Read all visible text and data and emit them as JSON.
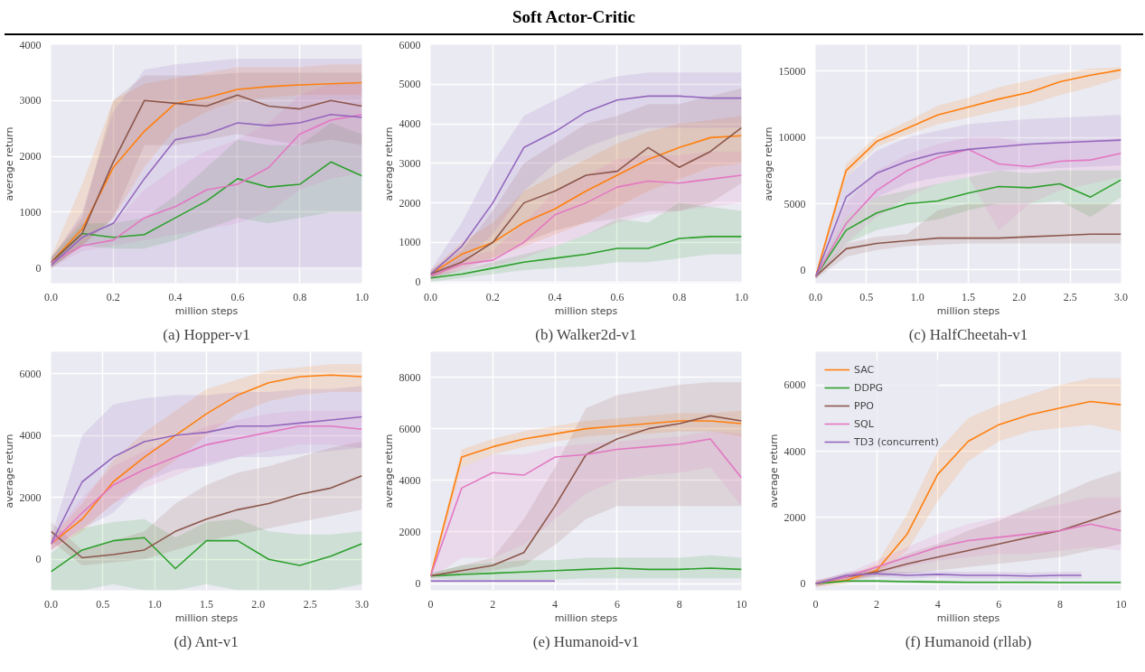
{
  "chart_data": [
    {
      "type": "line",
      "title": "(a) Hopper-v1",
      "annotations": [
        "Soft Actor-Critic"
      ],
      "xlabel": "million steps",
      "ylabel": "average return",
      "grid": true,
      "xlim": [
        0,
        1.0
      ],
      "ylim": [
        -270,
        4000
      ],
      "xticks": [
        {
          "value": 0,
          "label": "0.0"
        },
        {
          "value": 0.2,
          "label": "0.2"
        },
        {
          "value": 0.4,
          "label": "0.4"
        },
        {
          "value": 0.6,
          "label": "0.6"
        },
        {
          "value": 0.8,
          "label": "0.8"
        },
        {
          "value": 1.0,
          "label": "1.0"
        }
      ],
      "yticks": [
        0,
        1000,
        2000,
        3000,
        4000
      ],
      "x": [
        0,
        0.1,
        0.2,
        0.3,
        0.4,
        0.5,
        0.6,
        0.7,
        0.8,
        0.9,
        1.0
      ],
      "series": [
        {
          "color": "#ff7f0e",
          "values": [
            100,
            700,
            1800,
            2450,
            2950,
            3050,
            3200,
            3250,
            3280,
            3300,
            3320
          ],
          "lower": [
            0,
            400,
            900,
            1800,
            2500,
            2800,
            3000,
            3050,
            3100,
            3100,
            3100
          ],
          "upper": [
            200,
            1500,
            3000,
            3300,
            3400,
            3500,
            3600,
            3600,
            3600,
            3650,
            3650
          ]
        },
        {
          "color": "#2ca02c",
          "values": [
            100,
            620,
            550,
            600,
            900,
            1200,
            1600,
            1450,
            1500,
            1900,
            1650
          ],
          "lower": [
            0,
            400,
            350,
            350,
            500,
            700,
            900,
            800,
            900,
            1000,
            1000
          ],
          "upper": [
            200,
            800,
            800,
            900,
            1300,
            1800,
            2300,
            2200,
            2200,
            2600,
            2400
          ]
        },
        {
          "color": "#8c564b",
          "values": [
            100,
            620,
            1900,
            3000,
            2950,
            2900,
            3100,
            2900,
            2850,
            3000,
            2900
          ],
          "lower": [
            0,
            400,
            900,
            2200,
            2200,
            2300,
            2400,
            2300,
            2200,
            2300,
            2200
          ],
          "upper": [
            200,
            900,
            3000,
            3450,
            3450,
            3450,
            3500,
            3500,
            3500,
            3500,
            3500
          ]
        },
        {
          "color": "#e377c2",
          "values": [
            100,
            400,
            500,
            900,
            1100,
            1400,
            1500,
            1800,
            2400,
            2650,
            2750
          ],
          "lower": [
            0,
            300,
            400,
            500,
            600,
            700,
            800,
            1000,
            1400,
            1600,
            1700
          ],
          "upper": [
            200,
            600,
            800,
            1400,
            1800,
            2100,
            2300,
            2600,
            3100,
            3300,
            3300
          ]
        },
        {
          "color": "#9467bd",
          "values": [
            50,
            550,
            800,
            1600,
            2300,
            2400,
            2600,
            2550,
            2600,
            2750,
            2700
          ],
          "lower": [
            0,
            0,
            0,
            0,
            0,
            0,
            0,
            0,
            0,
            0,
            0
          ],
          "upper": [
            150,
            1000,
            2800,
            3550,
            3650,
            3700,
            3750,
            3750,
            3750,
            3750,
            3750
          ]
        }
      ]
    },
    {
      "type": "line",
      "title": "(b) Walker2d-v1",
      "xlabel": "million steps",
      "ylabel": "average return",
      "grid": true,
      "xlim": [
        0,
        1.0
      ],
      "ylim": [
        -30,
        6000
      ],
      "xticks": [
        {
          "value": 0,
          "label": "0.0"
        },
        {
          "value": 0.2,
          "label": "0.2"
        },
        {
          "value": 0.4,
          "label": "0.4"
        },
        {
          "value": 0.6,
          "label": "0.6"
        },
        {
          "value": 0.8,
          "label": "0.8"
        },
        {
          "value": 1.0,
          "label": "1.0"
        }
      ],
      "yticks": [
        0,
        1000,
        2000,
        3000,
        4000,
        5000,
        6000
      ],
      "x": [
        0,
        0.1,
        0.2,
        0.3,
        0.4,
        0.5,
        0.6,
        0.7,
        0.8,
        0.9,
        1.0
      ],
      "series": [
        {
          "color": "#ff7f0e",
          "values": [
            200,
            700,
            1000,
            1500,
            1850,
            2300,
            2700,
            3100,
            3400,
            3650,
            3700
          ],
          "lower": [
            100,
            400,
            600,
            900,
            1200,
            1500,
            1900,
            2300,
            2600,
            2900,
            3000
          ],
          "upper": [
            300,
            1000,
            1500,
            2300,
            2700,
            3100,
            3500,
            3800,
            4000,
            4100,
            4200
          ]
        },
        {
          "color": "#2ca02c",
          "values": [
            100,
            200,
            350,
            500,
            600,
            700,
            850,
            850,
            1100,
            1150,
            1150
          ],
          "lower": [
            0,
            100,
            200,
            300,
            350,
            400,
            500,
            500,
            600,
            700,
            700
          ],
          "upper": [
            200,
            300,
            500,
            700,
            900,
            1200,
            1600,
            1500,
            2000,
            1900,
            1800
          ]
        },
        {
          "color": "#8c564b",
          "values": [
            200,
            500,
            1000,
            2000,
            2300,
            2700,
            2800,
            3400,
            2900,
            3300,
            3900
          ],
          "lower": [
            100,
            300,
            600,
            1000,
            1300,
            1500,
            1600,
            1800,
            1800,
            2000,
            2500
          ],
          "upper": [
            300,
            800,
            1800,
            3000,
            3500,
            4000,
            4200,
            4500,
            4500,
            4700,
            4900
          ]
        },
        {
          "color": "#e377c2",
          "values": [
            150,
            450,
            550,
            1000,
            1700,
            2000,
            2400,
            2550,
            2500,
            2600,
            2700
          ],
          "lower": [
            50,
            300,
            400,
            600,
            900,
            1200,
            1500,
            1700,
            1800,
            1900,
            2000
          ],
          "upper": [
            250,
            600,
            800,
            1500,
            2300,
            2700,
            3100,
            3200,
            3200,
            3300,
            3300
          ]
        },
        {
          "color": "#9467bd",
          "values": [
            200,
            900,
            2000,
            3400,
            3800,
            4300,
            4600,
            4700,
            4700,
            4650,
            4650
          ],
          "lower": [
            100,
            500,
            1200,
            2300,
            3000,
            3400,
            3700,
            3900,
            3900,
            3900,
            3900
          ],
          "upper": [
            300,
            1500,
            3000,
            4200,
            4600,
            5000,
            5200,
            5300,
            5300,
            5300,
            5300
          ]
        }
      ]
    },
    {
      "type": "line",
      "title": "(c) HalfCheetah-v1",
      "xlabel": "million steps",
      "ylabel": "average return",
      "grid": true,
      "xlim": [
        0,
        3.0
      ],
      "ylim": [
        -1000,
        17000
      ],
      "xticks": [
        {
          "value": 0,
          "label": "0.0"
        },
        {
          "value": 0.5,
          "label": "0.5"
        },
        {
          "value": 1.0,
          "label": "1.0"
        },
        {
          "value": 1.5,
          "label": "1.5"
        },
        {
          "value": 2.0,
          "label": "2.0"
        },
        {
          "value": 2.5,
          "label": "2.5"
        },
        {
          "value": 3.0,
          "label": "3.0"
        }
      ],
      "yticks": [
        0,
        5000,
        10000,
        15000
      ],
      "x": [
        0,
        0.3,
        0.6,
        0.9,
        1.2,
        1.5,
        1.8,
        2.1,
        2.4,
        2.7,
        3.0
      ],
      "series": [
        {
          "color": "#ff7f0e",
          "values": [
            -500,
            7500,
            9700,
            10700,
            11700,
            12300,
            12900,
            13400,
            14200,
            14700,
            15100
          ],
          "lower": [
            -700,
            7000,
            9300,
            10200,
            11000,
            11500,
            12000,
            12500,
            13200,
            13800,
            14500
          ],
          "upper": [
            -300,
            8000,
            10100,
            11200,
            12400,
            13000,
            13800,
            14300,
            14800,
            15200,
            15300
          ]
        },
        {
          "color": "#2ca02c",
          "values": [
            -500,
            3000,
            4300,
            5000,
            5200,
            5800,
            6300,
            6200,
            6500,
            5500,
            6800
          ],
          "lower": [
            -700,
            2000,
            3000,
            3500,
            3800,
            4500,
            5000,
            5000,
            5200,
            4000,
            5500
          ],
          "upper": [
            -300,
            4000,
            5500,
            6000,
            6500,
            7000,
            7500,
            7300,
            7500,
            7500,
            7500
          ]
        },
        {
          "color": "#8c564b",
          "values": [
            -500,
            1600,
            2000,
            2200,
            2400,
            2400,
            2400,
            2500,
            2600,
            2700,
            2700
          ],
          "lower": [
            -700,
            1000,
            1500,
            1800,
            1900,
            2000,
            2000,
            2000,
            2000,
            2000,
            2000
          ],
          "upper": [
            -300,
            2000,
            2500,
            2700,
            4500,
            5000,
            5000,
            5000,
            5000,
            5000,
            5000
          ]
        },
        {
          "color": "#e377c2",
          "values": [
            -500,
            3500,
            6000,
            7500,
            8500,
            9100,
            8000,
            7800,
            8200,
            8300,
            8800
          ],
          "lower": [
            -700,
            2000,
            4000,
            5500,
            6500,
            7000,
            3000,
            5000,
            6000,
            6500,
            7000
          ],
          "upper": [
            -300,
            5000,
            7500,
            8700,
            9500,
            10000,
            10000,
            9500,
            9800,
            9800,
            10000
          ]
        },
        {
          "color": "#9467bd",
          "values": [
            -500,
            5500,
            7300,
            8200,
            8800,
            9100,
            9300,
            9500,
            9600,
            9700,
            9800
          ],
          "lower": [
            -700,
            4000,
            5500,
            6500,
            7000,
            7300,
            7500,
            7600,
            7700,
            7800,
            7900
          ],
          "upper": [
            -300,
            7000,
            9000,
            10000,
            10500,
            11000,
            11200,
            11400,
            11500,
            11600,
            11700
          ]
        }
      ]
    },
    {
      "type": "line",
      "title": "(d) Ant-v1",
      "xlabel": "million steps",
      "ylabel": "average return",
      "grid": true,
      "xlim": [
        0,
        3.0
      ],
      "ylim": [
        -1000,
        6700
      ],
      "xticks": [
        {
          "value": 0,
          "label": "0.0"
        },
        {
          "value": 0.5,
          "label": "0.5"
        },
        {
          "value": 1.0,
          "label": "1.0"
        },
        {
          "value": 1.5,
          "label": "1.5"
        },
        {
          "value": 2.0,
          "label": "2.0"
        },
        {
          "value": 2.5,
          "label": "2.5"
        },
        {
          "value": 3.0,
          "label": "3.0"
        }
      ],
      "yticks": [
        0,
        2000,
        4000,
        6000
      ],
      "x": [
        0,
        0.3,
        0.6,
        0.9,
        1.2,
        1.5,
        1.8,
        2.1,
        2.4,
        2.7,
        3.0
      ],
      "series": [
        {
          "color": "#ff7f0e",
          "values": [
            500,
            1300,
            2500,
            3300,
            4000,
            4700,
            5300,
            5700,
            5900,
            5950,
            5900
          ],
          "lower": [
            300,
            900,
            1800,
            2500,
            3200,
            4000,
            4700,
            5100,
            5300,
            5400,
            5400
          ],
          "upper": [
            700,
            1800,
            3200,
            4100,
            4800,
            5500,
            5800,
            6100,
            6200,
            6300,
            6300
          ]
        },
        {
          "color": "#2ca02c",
          "values": [
            -400,
            300,
            600,
            700,
            -300,
            600,
            600,
            0,
            -200,
            100,
            500
          ],
          "lower": [
            -1000,
            -1000,
            -800,
            -1000,
            -1000,
            -800,
            -1000,
            -1000,
            -1000,
            -1000,
            -800
          ],
          "upper": [
            200,
            1000,
            1200,
            1300,
            700,
            1200,
            1300,
            900,
            800,
            800,
            900
          ]
        },
        {
          "color": "#8c564b",
          "values": [
            900,
            50,
            150,
            300,
            900,
            1300,
            1600,
            1800,
            2100,
            2300,
            2700
          ],
          "lower": [
            600,
            -200,
            -100,
            0,
            300,
            600,
            800,
            1000,
            1200,
            1400,
            1600
          ],
          "upper": [
            1200,
            300,
            600,
            900,
            1800,
            2400,
            2800,
            3000,
            3300,
            3600,
            3800
          ]
        },
        {
          "color": "#e377c2",
          "values": [
            500,
            1500,
            2400,
            2900,
            3300,
            3700,
            3900,
            4100,
            4300,
            4300,
            4200
          ],
          "lower": [
            300,
            1000,
            1800,
            2300,
            2700,
            3100,
            3300,
            3500,
            3700,
            3700,
            3600
          ],
          "upper": [
            700,
            2000,
            3000,
            3500,
            3900,
            4300,
            4500,
            4700,
            4800,
            4800,
            4800
          ]
        },
        {
          "color": "#9467bd",
          "values": [
            500,
            2500,
            3300,
            3800,
            4000,
            4100,
            4300,
            4300,
            4400,
            4500,
            4600
          ],
          "lower": [
            300,
            1000,
            1500,
            2500,
            2900,
            3000,
            3300,
            3300,
            3400,
            3500,
            3600
          ],
          "upper": [
            700,
            4000,
            5000,
            5200,
            5300,
            5300,
            5400,
            5400,
            5500,
            5500,
            5600
          ]
        }
      ]
    },
    {
      "type": "line",
      "title": "(e) Humanoid-v1",
      "xlabel": "million steps",
      "ylabel": "average return",
      "grid": true,
      "xlim": [
        0,
        10
      ],
      "ylim": [
        -260,
        8980
      ],
      "xticks": [
        0,
        2,
        4,
        6,
        8,
        10
      ],
      "yticks": [
        0,
        2000,
        4000,
        6000,
        8000
      ],
      "x": [
        0,
        1,
        2,
        3,
        4,
        5,
        6,
        7,
        8,
        9,
        10
      ],
      "series": [
        {
          "color": "#ff7f0e",
          "values": [
            300,
            4900,
            5300,
            5600,
            5800,
            6000,
            6100,
            6200,
            6300,
            6300,
            6200
          ],
          "lower": [
            200,
            4500,
            5000,
            5300,
            5500,
            5700,
            5800,
            5800,
            5900,
            5900,
            5700
          ],
          "upper": [
            400,
            5200,
            5600,
            5900,
            6100,
            6300,
            6400,
            6500,
            6600,
            6600,
            6700
          ]
        },
        {
          "color": "#2ca02c",
          "values": [
            300,
            350,
            400,
            450,
            500,
            550,
            600,
            550,
            550,
            600,
            550
          ],
          "lower": [
            200,
            150,
            150,
            150,
            150,
            200,
            200,
            200,
            200,
            200,
            200
          ],
          "upper": [
            400,
            700,
            800,
            900,
            900,
            1000,
            1000,
            1000,
            1000,
            1100,
            1000
          ]
        },
        {
          "color": "#8c564b",
          "values": [
            300,
            500,
            700,
            1200,
            3000,
            5000,
            5600,
            6000,
            6200,
            6500,
            6300
          ],
          "lower": [
            200,
            350,
            500,
            700,
            1500,
            2500,
            3000,
            3000,
            3000,
            3000,
            3000
          ],
          "upper": [
            400,
            700,
            1000,
            2500,
            4500,
            6800,
            7300,
            7500,
            7700,
            7800,
            7800
          ]
        },
        {
          "color": "#e377c2",
          "values": [
            300,
            3700,
            4300,
            4200,
            4900,
            5000,
            5200,
            5300,
            5400,
            5600,
            4100
          ],
          "lower": [
            200,
            1000,
            1000,
            1500,
            2500,
            3500,
            4000,
            4200,
            4300,
            4500,
            3000
          ],
          "upper": [
            400,
            4500,
            5000,
            5000,
            5300,
            5400,
            5500,
            5600,
            5700,
            5900,
            5800
          ]
        },
        {
          "color": "#9467bd",
          "x": [
            0,
            1,
            2,
            3,
            4
          ],
          "values": [
            100,
            100,
            100,
            100,
            100
          ],
          "lower": [
            50,
            50,
            50,
            50,
            50
          ],
          "upper": [
            150,
            150,
            150,
            150,
            150
          ]
        }
      ]
    },
    {
      "type": "line",
      "title": "(f) Humanoid (rllab)",
      "xlabel": "million steps",
      "ylabel": "average return",
      "grid": true,
      "legend": "top left",
      "xlim": [
        0,
        10
      ],
      "ylim": [
        -200,
        7000
      ],
      "xticks": [
        0,
        2,
        4,
        6,
        8,
        10
      ],
      "yticks": [
        0,
        2000,
        4000,
        6000
      ],
      "x": [
        0,
        1,
        2,
        3,
        4,
        5,
        6,
        7,
        8,
        9,
        10
      ],
      "series": [
        {
          "name": "SAC",
          "color": "#ff7f0e",
          "values": [
            0,
            100,
            400,
            1500,
            3300,
            4300,
            4800,
            5100,
            5300,
            5500,
            5400
          ],
          "lower": [
            -100,
            0,
            300,
            1000,
            2500,
            3700,
            4300,
            4600,
            4700,
            4800,
            4600
          ],
          "upper": [
            100,
            200,
            600,
            2100,
            4000,
            5000,
            5400,
            5700,
            6000,
            6200,
            6200
          ]
        },
        {
          "name": "DDPG",
          "color": "#2ca02c",
          "values": [
            0,
            80,
            80,
            60,
            50,
            40,
            40,
            40,
            30,
            30,
            30
          ],
          "lower": [
            -50,
            30,
            30,
            20,
            10,
            0,
            0,
            0,
            0,
            0,
            0
          ],
          "upper": [
            50,
            130,
            130,
            110,
            100,
            90,
            90,
            90,
            80,
            80,
            80
          ]
        },
        {
          "name": "PPO",
          "color": "#8c564b",
          "values": [
            0,
            200,
            350,
            600,
            800,
            1000,
            1200,
            1400,
            1600,
            1900,
            2200
          ],
          "lower": [
            -100,
            100,
            200,
            300,
            400,
            500,
            600,
            700,
            800,
            1000,
            1200
          ],
          "upper": [
            100,
            300,
            500,
            900,
            1200,
            1600,
            1900,
            2300,
            2700,
            3100,
            3400
          ]
        },
        {
          "name": "SQL",
          "color": "#e377c2",
          "values": [
            0,
            200,
            500,
            800,
            1100,
            1300,
            1400,
            1500,
            1600,
            1800,
            1600
          ],
          "lower": [
            -100,
            100,
            300,
            500,
            700,
            800,
            900,
            900,
            1000,
            1100,
            1000
          ],
          "upper": [
            100,
            300,
            700,
            1100,
            1500,
            1800,
            2000,
            2200,
            2400,
            2600,
            2600
          ]
        },
        {
          "name": "TD3 (concurrent)",
          "color": "#9467bd",
          "x": [
            0,
            1,
            2,
            3,
            4,
            5,
            6,
            7,
            8,
            8.7
          ],
          "values": [
            0,
            250,
            300,
            250,
            280,
            250,
            250,
            230,
            250,
            250
          ],
          "lower": [
            0,
            150,
            200,
            150,
            180,
            150,
            150,
            130,
            150,
            150
          ],
          "upper": [
            50,
            350,
            400,
            350,
            380,
            350,
            350,
            330,
            350,
            350
          ]
        }
      ]
    }
  ]
}
